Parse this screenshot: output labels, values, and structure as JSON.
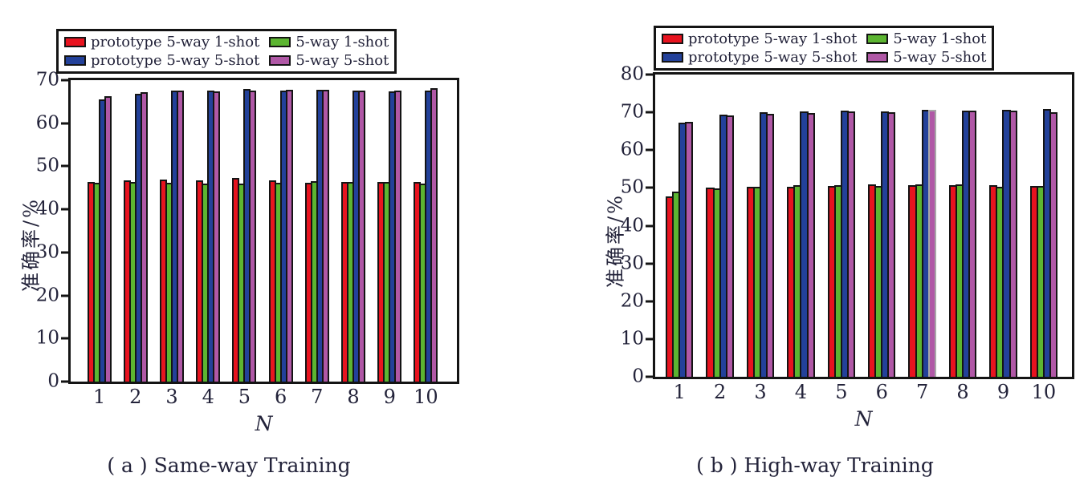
{
  "figure": {
    "background_color": "#ffffff",
    "text_color": "#23233a",
    "axis_color": "#141414"
  },
  "chart_data": [
    {
      "type": "bar",
      "title": "( a ) Same-way Training",
      "xlabel": "N",
      "ylabel": "准确率/%",
      "ylim": [
        0,
        70
      ],
      "yticks": [
        0,
        10,
        20,
        30,
        40,
        50,
        60,
        70
      ],
      "categories": [
        "1",
        "2",
        "3",
        "4",
        "5",
        "6",
        "7",
        "8",
        "9",
        "10"
      ],
      "grid": false,
      "legend_position": "top-left-above-plot",
      "series": [
        {
          "name": "prototype 5-way 1-shot",
          "color": "#e8131f",
          "values": [
            46.3,
            46.7,
            46.9,
            46.8,
            47.3,
            46.8,
            46.2,
            46.4,
            46.3,
            46.4
          ]
        },
        {
          "name": "5-way 1-shot",
          "color": "#5cb531",
          "values": [
            46.2,
            46.3,
            46.2,
            46.0,
            46.0,
            46.2,
            46.5,
            46.4,
            46.4,
            45.9
          ]
        },
        {
          "name": "prototype 5-way 5-shot",
          "color": "#23419a",
          "values": [
            65.6,
            66.9,
            67.5,
            67.5,
            67.9,
            67.6,
            67.7,
            67.6,
            67.4,
            67.6
          ]
        },
        {
          "name": "5-way 5-shot",
          "color": "#b058a6",
          "values": [
            66.3,
            67.2,
            67.5,
            67.4,
            67.6,
            67.8,
            67.7,
            67.6,
            67.6,
            68.2
          ]
        }
      ]
    },
    {
      "type": "bar",
      "title": "( b ) High-way Training",
      "xlabel": "N",
      "ylabel": "准确率/%",
      "ylim": [
        0,
        80
      ],
      "yticks": [
        0,
        10,
        20,
        30,
        40,
        50,
        60,
        70,
        80
      ],
      "categories": [
        "1",
        "2",
        "3",
        "4",
        "5",
        "6",
        "7",
        "8",
        "9",
        "10"
      ],
      "grid": false,
      "legend_position": "top-left-above-plot",
      "series": [
        {
          "name": "prototype 5-way 1-shot",
          "color": "#e8131f",
          "values": [
            47.8,
            50.1,
            50.2,
            50.4,
            50.6,
            51.0,
            50.8,
            50.7,
            50.8,
            50.6
          ]
        },
        {
          "name": "5-way 1-shot",
          "color": "#5cb531",
          "values": [
            49.0,
            49.9,
            50.4,
            50.8,
            50.8,
            50.6,
            50.9,
            51.0,
            50.3,
            50.6
          ]
        },
        {
          "name": "prototype 5-way 5-shot",
          "color": "#23419a",
          "values": [
            67.2,
            69.4,
            70.0,
            70.3,
            70.4,
            70.3,
            70.6,
            70.5,
            70.6,
            70.8
          ]
        },
        {
          "name": "5-way 5-shot",
          "color": "#b058a6",
          "values": [
            67.4,
            69.1,
            69.5,
            69.8,
            70.3,
            70.1,
            70.6,
            70.4,
            70.5,
            70.0
          ]
        }
      ],
      "highlight_bar": {
        "series_index": 3,
        "category_index": 6,
        "outline_color": "#a8a8a8"
      }
    }
  ]
}
